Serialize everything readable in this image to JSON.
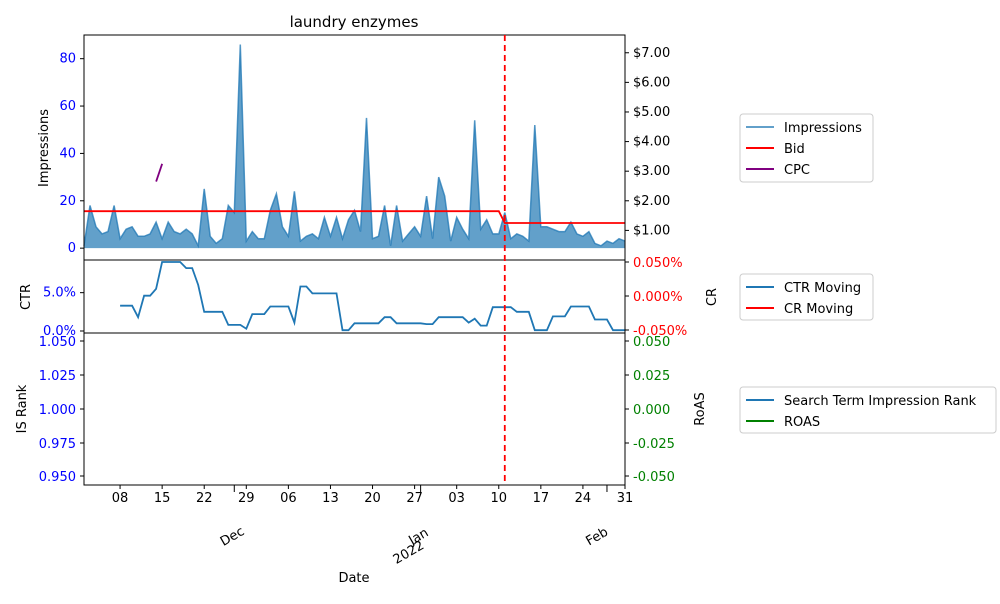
{
  "chart_data": {
    "type": "line",
    "title": "laundry enzymes",
    "xlabel": "Date",
    "x_ticks": {
      "minor": [
        "08",
        "15",
        "22",
        "29",
        "06",
        "13",
        "20",
        "27",
        "03",
        "10",
        "17",
        "24",
        "31"
      ],
      "major": [
        {
          "label": "Dec",
          "sublabel": ""
        },
        {
          "label": "Jan",
          "sublabel": "2022"
        },
        {
          "label": "Feb",
          "sublabel": ""
        }
      ]
    },
    "panels": [
      {
        "id": "top",
        "ylabel_left": "Impressions",
        "ylim_left": [
          -5,
          90
        ],
        "yticks_left": [
          0,
          20,
          40,
          60,
          80
        ],
        "ylabel_right": "",
        "ylim_right": [
          0.0,
          7.6
        ],
        "yticks_right": [
          "$1.00",
          "$2.00",
          "$3.00",
          "$4.00",
          "$5.00",
          "$6.00",
          "$7.00"
        ],
        "series": [
          {
            "name": "Impressions",
            "kind": "area",
            "axis": "left",
            "color": "#1f77b4",
            "values": [
              1,
              18,
              9,
              6,
              7,
              18,
              4,
              8,
              9,
              5,
              5,
              6,
              11,
              4,
              11,
              7,
              6,
              8,
              6,
              1,
              25,
              5,
              2,
              4,
              18,
              15,
              86,
              3,
              7,
              4,
              4,
              16,
              23,
              9,
              5,
              24,
              3,
              5,
              6,
              4,
              13,
              5,
              13,
              4,
              12,
              16,
              7,
              55,
              4,
              5,
              18,
              1,
              18,
              3,
              6,
              9,
              5,
              22,
              4,
              30,
              22,
              3,
              13,
              8,
              4,
              54,
              8,
              12,
              6,
              6,
              15,
              4,
              6,
              5,
              3,
              52,
              9,
              9,
              8,
              7,
              7,
              11,
              6,
              5,
              7,
              2,
              1,
              3,
              2,
              4,
              3
            ]
          },
          {
            "name": "Bid",
            "kind": "line",
            "axis": "right",
            "color": "#ff0000",
            "values": [
              1.65,
              1.65,
              1.65,
              1.65,
              1.65,
              1.65,
              1.65,
              1.65,
              1.65,
              1.65,
              1.65,
              1.65,
              1.65,
              1.65,
              1.65,
              1.65,
              1.65,
              1.65,
              1.65,
              1.65,
              1.65,
              1.65,
              1.65,
              1.65,
              1.65,
              1.65,
              1.65,
              1.65,
              1.65,
              1.65,
              1.65,
              1.65,
              1.65,
              1.65,
              1.65,
              1.65,
              1.65,
              1.65,
              1.65,
              1.65,
              1.65,
              1.65,
              1.65,
              1.65,
              1.65,
              1.65,
              1.65,
              1.65,
              1.65,
              1.65,
              1.65,
              1.65,
              1.65,
              1.65,
              1.65,
              1.65,
              1.65,
              1.65,
              1.65,
              1.65,
              1.65,
              1.65,
              1.65,
              1.65,
              1.65,
              1.65,
              1.65,
              1.65,
              1.65,
              1.65,
              1.25,
              1.25,
              1.25,
              1.25,
              1.25,
              1.25,
              1.25,
              1.25,
              1.25,
              1.25,
              1.25,
              1.25,
              1.25,
              1.25,
              1.25,
              1.25,
              1.25,
              1.25,
              1.25,
              1.25,
              1.25
            ]
          },
          {
            "name": "CPC",
            "kind": "line",
            "axis": "right",
            "color": "#800080",
            "segment": [
              {
                "i": 12,
                "v": 2.65
              },
              {
                "i": 13,
                "v": 3.25
              }
            ]
          }
        ],
        "legend": [
          "Impressions",
          "Bid",
          "CPC"
        ]
      },
      {
        "id": "middle",
        "ylabel_left": "CTR",
        "ylim_left": [
          0,
          0.09
        ],
        "yticks_left": [
          "0.0%",
          "5.0%"
        ],
        "ylabel_right": "CR",
        "yticks_right": [
          "-0.050%",
          "0.000%",
          "0.050%"
        ],
        "series": [
          {
            "name": "CTR Moving",
            "kind": "line",
            "axis": "left",
            "color": "#1f77b4",
            "start": 6,
            "values": [
              0.033,
              0.033,
              0.033,
              0.018,
              0.046,
              0.046,
              0.055,
              0.09,
              0.09,
              0.09,
              0.09,
              0.082,
              0.082,
              0.06,
              0.025,
              0.025,
              0.025,
              0.025,
              0.008,
              0.008,
              0.008,
              0.003,
              0.022,
              0.022,
              0.022,
              0.032,
              0.032,
              0.032,
              0.032,
              0.011,
              0.058,
              0.058,
              0.049,
              0.049,
              0.049,
              0.049,
              0.049,
              0.001,
              0.001,
              0.01,
              0.01,
              0.01,
              0.01,
              0.01,
              0.018,
              0.018,
              0.01,
              0.01,
              0.01,
              0.01,
              0.01,
              0.009,
              0.009,
              0.018,
              0.018,
              0.018,
              0.018,
              0.018,
              0.011,
              0.016,
              0.007,
              0.007,
              0.031,
              0.031,
              0.031,
              0.031,
              0.025,
              0.025,
              0.025,
              0.001,
              0.001,
              0.001,
              0.019,
              0.019,
              0.019,
              0.032,
              0.032,
              0.032,
              0.032,
              0.015,
              0.015,
              0.015,
              0.001,
              0.001,
              0.001
            ]
          },
          {
            "name": "CR Moving",
            "kind": "line",
            "axis": "right",
            "color": "#ff0000",
            "values": []
          }
        ],
        "legend": [
          "CTR Moving",
          "CR Moving"
        ]
      },
      {
        "id": "bottom",
        "ylabel_left": "IS Rank",
        "yticks_left": [
          "0.950",
          "0.975",
          "1.000",
          "1.025",
          "1.050"
        ],
        "ylabel_right": "RoAS",
        "yticks_right": [
          "-0.050",
          "-0.025",
          "0.000",
          "0.025",
          "0.050"
        ],
        "series": [
          {
            "name": "Search Term Impression Rank",
            "kind": "line",
            "axis": "left",
            "color": "#1f77b4",
            "values": []
          },
          {
            "name": "ROAS",
            "kind": "line",
            "axis": "right",
            "color": "#008000",
            "values": []
          }
        ],
        "legend": [
          "Search Term Impression Rank",
          "ROAS"
        ]
      }
    ],
    "vline": {
      "index": 70,
      "color": "#ff0000",
      "style": "dashed"
    },
    "colors": {
      "left_tick": "#0000ff",
      "right_tick_top": "#000000",
      "right_tick_middle": "#ff0000",
      "right_tick_bottom": "#008000"
    }
  }
}
